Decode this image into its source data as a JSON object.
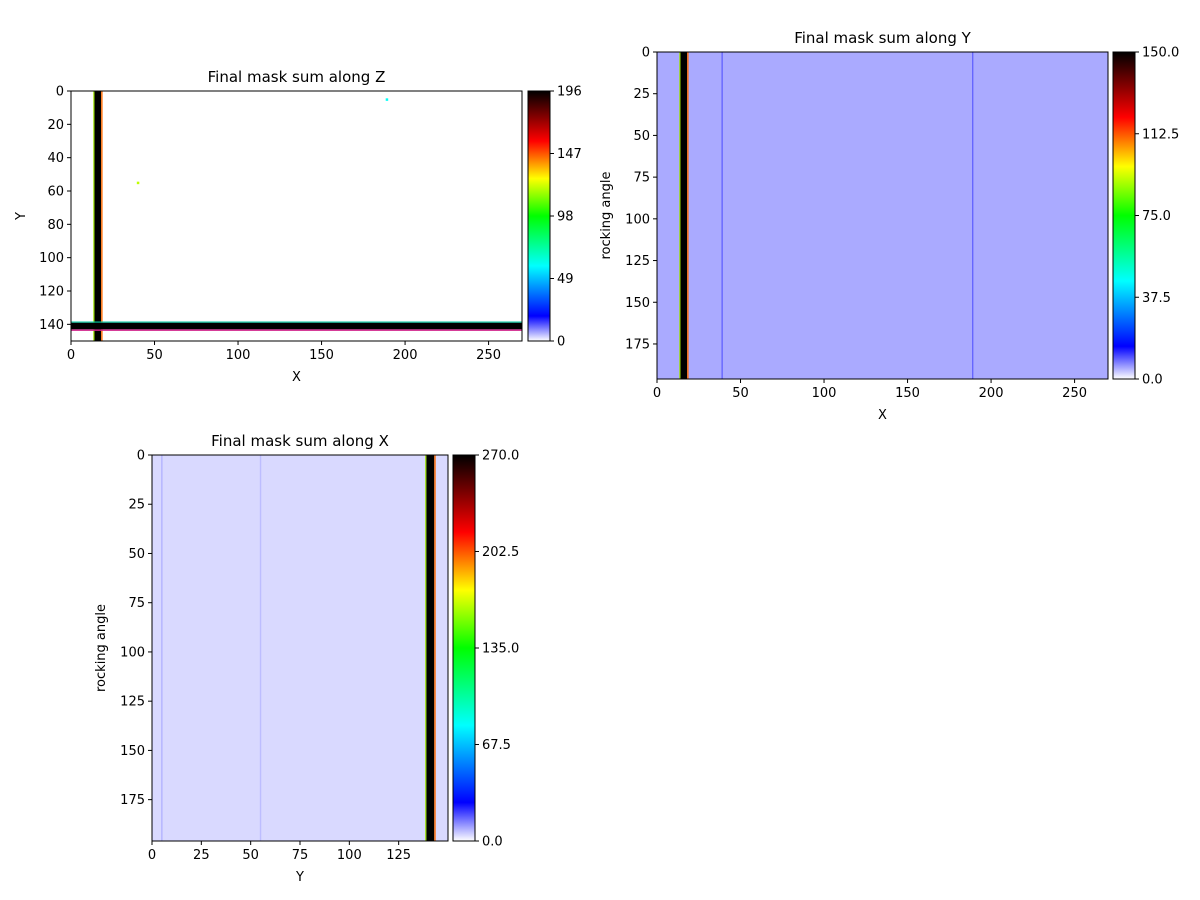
{
  "chart_data": [
    {
      "type": "heatmap",
      "title": "Final mask sum along Z",
      "xlabel": "X",
      "ylabel": "Y",
      "xlim": [
        0,
        270
      ],
      "ylim": [
        150,
        0
      ],
      "xticks": [
        "0",
        "50",
        "100",
        "150",
        "200",
        "250"
      ],
      "yticks": [
        "0",
        "20",
        "40",
        "60",
        "80",
        "100",
        "120",
        "140"
      ],
      "colorbar": {
        "min": 0,
        "max": 196,
        "ticks": [
          "0",
          "49",
          "98",
          "147",
          "196"
        ]
      },
      "background_value": 0,
      "features": [
        {
          "kind": "vertical-band",
          "from": 14,
          "to": 18,
          "value": 196
        },
        {
          "kind": "horizontal-band",
          "from": 139,
          "to": 143,
          "value": 196
        },
        {
          "kind": "point",
          "x": 189,
          "y": 5,
          "value": 60
        },
        {
          "kind": "point",
          "x": 40,
          "y": 55,
          "value": 120
        }
      ]
    },
    {
      "type": "heatmap",
      "title": "Final mask sum along Y",
      "xlabel": "X",
      "ylabel": "rocking angle",
      "xlim": [
        0,
        270
      ],
      "ylim": [
        196,
        0
      ],
      "xticks": [
        "0",
        "50",
        "100",
        "150",
        "200",
        "250"
      ],
      "yticks": [
        "0",
        "25",
        "50",
        "75",
        "100",
        "125",
        "150",
        "175"
      ],
      "colorbar": {
        "min": 0,
        "max": 150,
        "ticks": [
          "0.0",
          "37.5",
          "75.0",
          "112.5",
          "150.0"
        ]
      },
      "background_value": 5,
      "features": [
        {
          "kind": "vertical-band",
          "from": 14,
          "to": 18,
          "value": 150
        },
        {
          "kind": "vertical-line",
          "at": 39,
          "value": 9
        },
        {
          "kind": "vertical-line",
          "at": 189,
          "value": 9
        }
      ]
    },
    {
      "type": "heatmap",
      "title": "Final mask sum along X",
      "xlabel": "Y",
      "ylabel": "rocking angle",
      "xlim": [
        0,
        150
      ],
      "ylim": [
        196,
        0
      ],
      "xticks": [
        "0",
        "25",
        "50",
        "75",
        "100",
        "125"
      ],
      "yticks": [
        "0",
        "25",
        "50",
        "75",
        "100",
        "125",
        "150",
        "175"
      ],
      "colorbar": {
        "min": 0,
        "max": 270,
        "ticks": [
          "0.0",
          "67.5",
          "135.0",
          "202.5",
          "270.0"
        ]
      },
      "background_value": 4,
      "features": [
        {
          "kind": "vertical-band",
          "from": 139,
          "to": 143,
          "value": 270
        },
        {
          "kind": "vertical-line",
          "at": 5,
          "value": 8
        },
        {
          "kind": "vertical-line",
          "at": 55,
          "value": 7
        }
      ]
    }
  ]
}
